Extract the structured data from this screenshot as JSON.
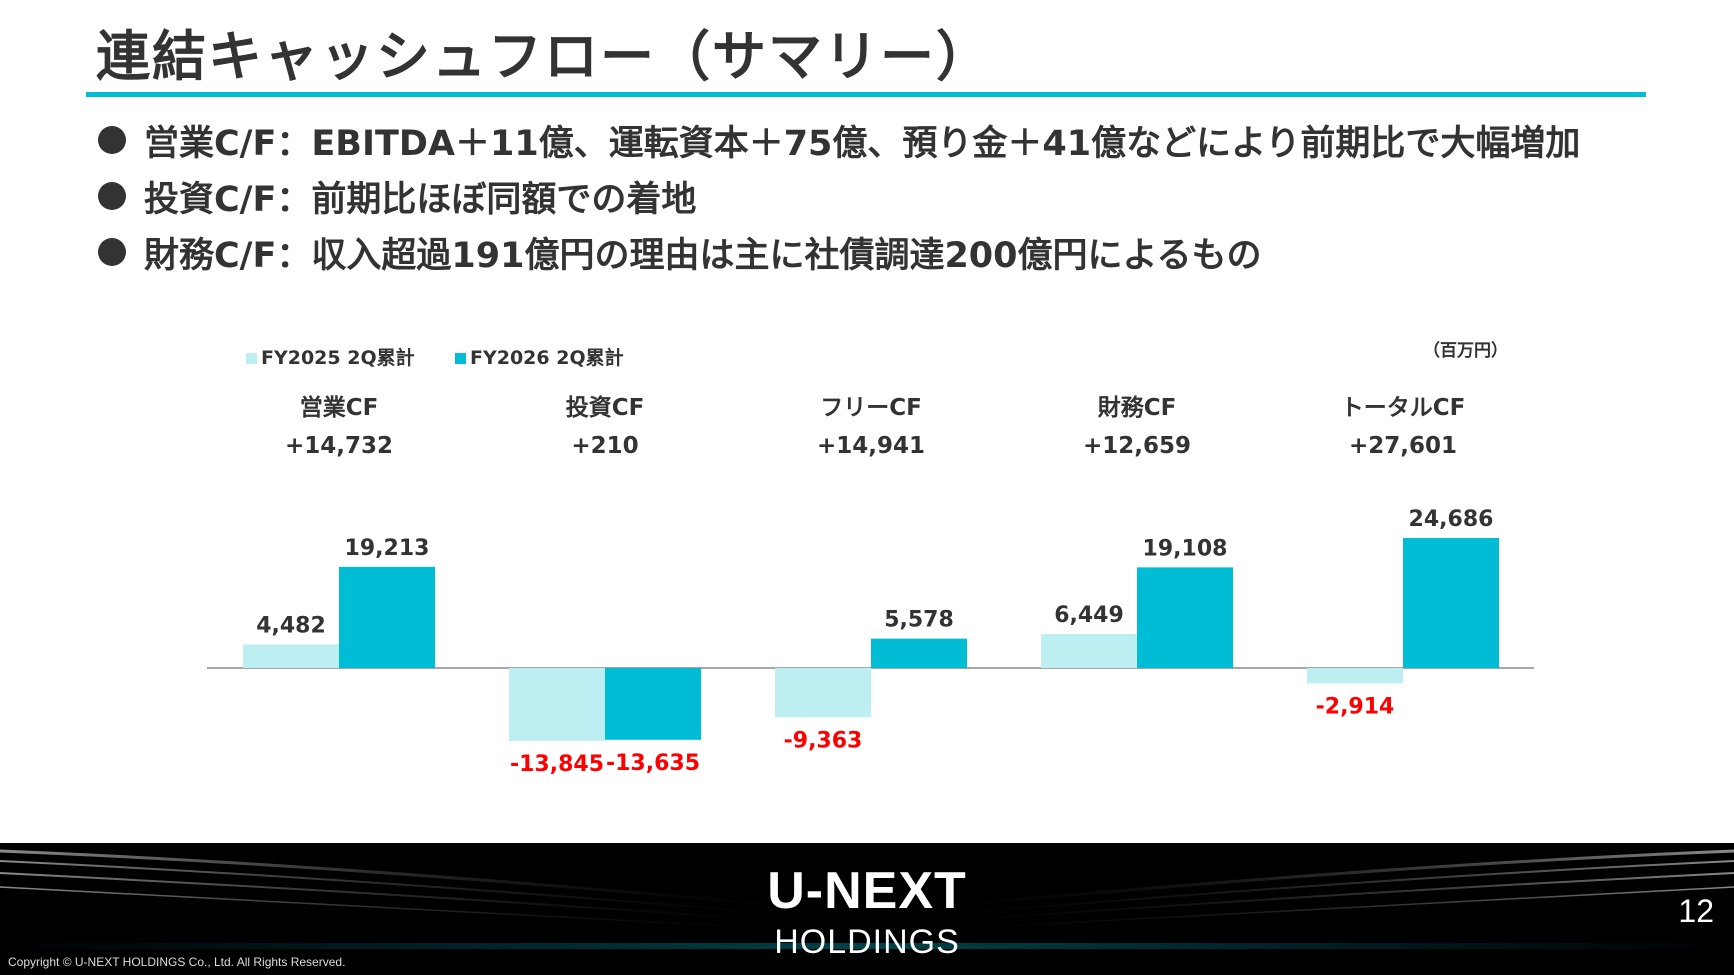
{
  "title": "連結キャッシュフロー（サマリー）",
  "bullets": [
    "営業C/F：EBITDA＋11億、運転資本＋75億、預り金＋41億などにより前期比で大幅増加",
    "投資C/F：前期比ほぼ同額での着地",
    "財務C/F：収入超過191億円の理由は主に社債調達200億円によるもの"
  ],
  "colors": {
    "accent": "#00bcd4",
    "fy2025": "#bdeef2",
    "fy2026": "#00bcd4",
    "negative": "#ff0000",
    "text": "#333333"
  },
  "chart_data": {
    "type": "bar",
    "unit_label": "（百万円）",
    "categories": [
      "営業CF",
      "投資CF",
      "フリーCF",
      "財務CF",
      "トータルCF"
    ],
    "deltas": [
      "+14,732",
      "+210",
      "+14,941",
      "+12,659",
      "+27,601"
    ],
    "series": [
      {
        "name": "FY2025 2Q累計",
        "values": [
          4482,
          -13845,
          -9363,
          6449,
          -2914
        ],
        "labels": [
          "4,482",
          "-13,845",
          "-9,363",
          "6,449",
          "-2,914"
        ]
      },
      {
        "name": "FY2026 2Q累計",
        "values": [
          19213,
          -13635,
          5578,
          19108,
          24686
        ],
        "labels": [
          "19,213",
          "-13,635",
          "5,578",
          "19,108",
          ""
        ]
      }
    ],
    "extra_labels": [
      "24,686"
    ],
    "ylim": [
      -16000,
      26000
    ],
    "grid": false,
    "legend": "top-left"
  },
  "footer": {
    "logo_main": "U-NEXT",
    "logo_sub": "HOLDINGS",
    "page_number": "12",
    "copyright": "Copyright © U-NEXT HOLDINGS Co., Ltd. All Rights Reserved."
  }
}
